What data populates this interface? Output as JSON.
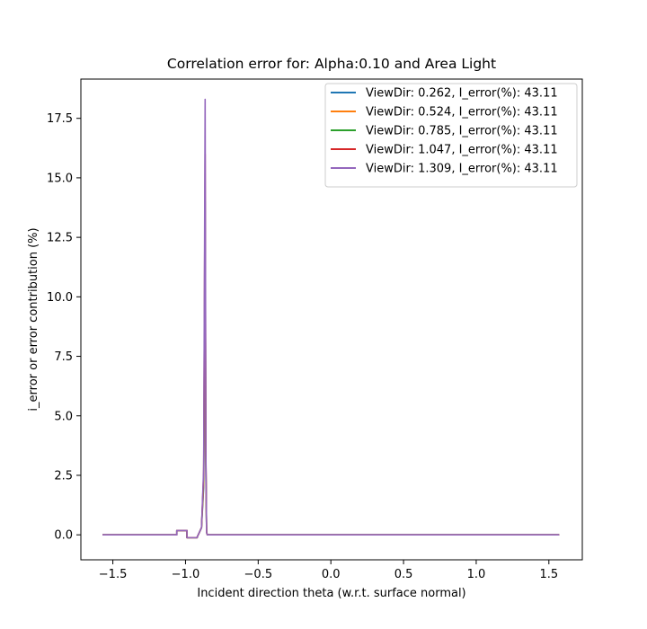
{
  "chart_data": {
    "type": "line",
    "title": "Correlation error for: Alpha:0.10 and Area Light",
    "xlabel": "Incident direction theta (w.r.t. surface normal)",
    "ylabel": "i_error or error contribution (%)",
    "xlim": [
      -1.72,
      1.73
    ],
    "ylim": [
      -1.05,
      19.15
    ],
    "xticks": [
      -1.5,
      -1.0,
      -0.5,
      0.0,
      0.5,
      1.0,
      1.5
    ],
    "xtick_labels": [
      "−1.5",
      "−1.0",
      "−0.5",
      "0.0",
      "0.5",
      "1.0",
      "1.5"
    ],
    "yticks": [
      0.0,
      2.5,
      5.0,
      7.5,
      10.0,
      12.5,
      15.0,
      17.5
    ],
    "ytick_labels": [
      "0.0",
      "2.5",
      "5.0",
      "7.5",
      "10.0",
      "12.5",
      "15.0",
      "17.5"
    ],
    "grid": false,
    "legend_position": "top-right",
    "series": [
      {
        "name": "ViewDir: 0.262, I_error(%): 43.11",
        "color": "#1f77b4",
        "x": [
          -1.571,
          -1.06,
          -1.06,
          -0.99,
          -0.99,
          -0.92,
          -0.92,
          -0.89,
          -0.875,
          -0.865,
          -0.86,
          -0.855,
          -0.85,
          1.571
        ],
        "y": [
          0.0,
          0.0,
          0.18,
          0.18,
          -0.12,
          -0.12,
          -0.1,
          0.3,
          2.0,
          10.0,
          2.5,
          0.1,
          0.0,
          0.0
        ]
      },
      {
        "name": "ViewDir: 0.524, I_error(%): 43.11",
        "color": "#ff7f0e",
        "x": [
          -1.571,
          -1.06,
          -1.06,
          -0.99,
          -0.99,
          -0.92,
          -0.92,
          -0.89,
          -0.875,
          -0.865,
          -0.86,
          -0.855,
          -0.85,
          1.571
        ],
        "y": [
          0.0,
          0.0,
          0.18,
          0.18,
          -0.12,
          -0.12,
          -0.1,
          0.3,
          2.2,
          12.0,
          3.0,
          0.1,
          0.0,
          0.0
        ]
      },
      {
        "name": "ViewDir: 0.785, I_error(%): 43.11",
        "color": "#2ca02c",
        "x": [
          -1.571,
          -1.06,
          -1.06,
          -0.99,
          -0.99,
          -0.92,
          -0.92,
          -0.89,
          -0.875,
          -0.865,
          -0.86,
          -0.855,
          -0.85,
          1.571
        ],
        "y": [
          0.0,
          0.0,
          0.18,
          0.18,
          -0.12,
          -0.12,
          -0.1,
          0.3,
          2.4,
          14.0,
          3.2,
          0.1,
          0.0,
          0.0
        ]
      },
      {
        "name": "ViewDir: 1.047, I_error(%): 43.11",
        "color": "#d62728",
        "x": [
          -1.571,
          -1.06,
          -1.06,
          -0.99,
          -0.99,
          -0.92,
          -0.92,
          -0.89,
          -0.875,
          -0.865,
          -0.86,
          -0.855,
          -0.85,
          1.571
        ],
        "y": [
          0.0,
          0.0,
          0.18,
          0.18,
          -0.12,
          -0.12,
          -0.1,
          0.3,
          2.6,
          16.0,
          3.4,
          0.1,
          0.0,
          0.0
        ]
      },
      {
        "name": "ViewDir: 1.309, I_error(%): 43.11",
        "color": "#9467bd",
        "x": [
          -1.571,
          -1.06,
          -1.06,
          -0.99,
          -0.99,
          -0.92,
          -0.92,
          -0.89,
          -0.875,
          -0.865,
          -0.86,
          -0.855,
          -0.85,
          1.571
        ],
        "y": [
          0.0,
          0.0,
          0.18,
          0.18,
          -0.12,
          -0.12,
          -0.1,
          0.3,
          2.8,
          18.3,
          3.5,
          0.1,
          0.0,
          0.0
        ]
      }
    ]
  }
}
